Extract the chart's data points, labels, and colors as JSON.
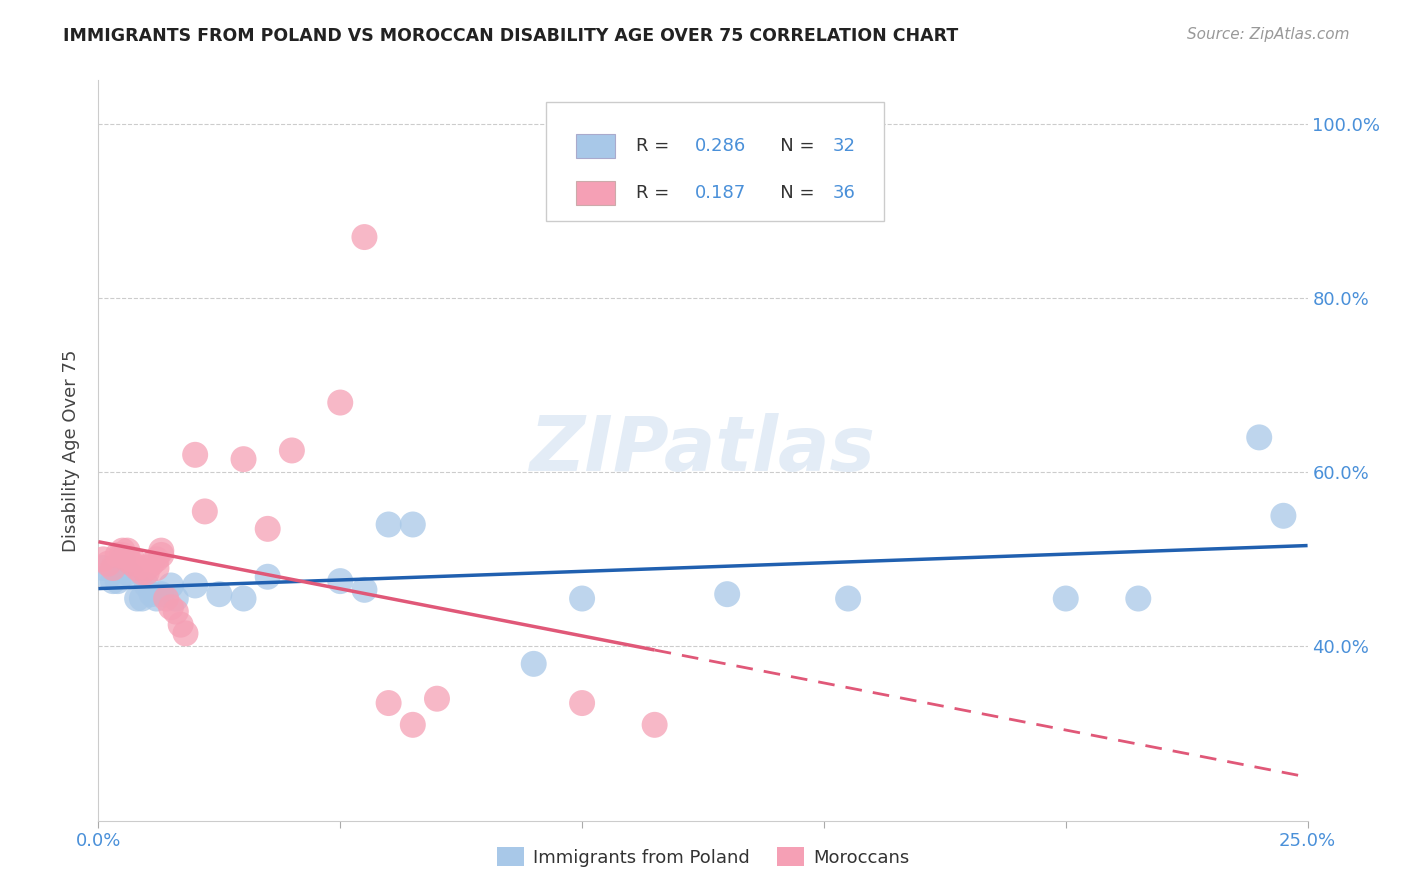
{
  "title": "IMMIGRANTS FROM POLAND VS MOROCCAN DISABILITY AGE OVER 75 CORRELATION CHART",
  "source": "Source: ZipAtlas.com",
  "ylabel": "Disability Age Over 75",
  "xlim": [
    0.0,
    0.25
  ],
  "ylim": [
    0.2,
    1.05
  ],
  "xticks": [
    0.0,
    0.05,
    0.1,
    0.15,
    0.2,
    0.25
  ],
  "xticklabels": [
    "0.0%",
    "",
    "",
    "",
    "",
    "25.0%"
  ],
  "yticks": [
    0.4,
    0.6,
    0.8,
    1.0
  ],
  "yticklabels": [
    "40.0%",
    "60.0%",
    "80.0%",
    "100.0%"
  ],
  "poland_color": "#a8c8e8",
  "moroccan_color": "#f5a0b5",
  "poland_line_color": "#2060b0",
  "moroccan_line_color": "#e05878",
  "grid_color": "#cccccc",
  "axis_color": "#4a90d9",
  "poland_x": [
    0.001,
    0.002,
    0.003,
    0.004,
    0.005,
    0.005,
    0.006,
    0.007,
    0.008,
    0.009,
    0.01,
    0.011,
    0.012,
    0.013,
    0.015,
    0.016,
    0.02,
    0.025,
    0.03,
    0.035,
    0.05,
    0.055,
    0.06,
    0.065,
    0.09,
    0.1,
    0.13,
    0.155,
    0.2,
    0.215,
    0.24,
    0.245
  ],
  "poland_y": [
    0.49,
    0.48,
    0.475,
    0.475,
    0.5,
    0.49,
    0.485,
    0.48,
    0.455,
    0.455,
    0.47,
    0.46,
    0.455,
    0.46,
    0.47,
    0.455,
    0.47,
    0.46,
    0.455,
    0.48,
    0.475,
    0.465,
    0.54,
    0.54,
    0.38,
    0.455,
    0.46,
    0.455,
    0.455,
    0.455,
    0.64,
    0.55
  ],
  "moroccan_x": [
    0.001,
    0.002,
    0.003,
    0.004,
    0.005,
    0.005,
    0.006,
    0.006,
    0.007,
    0.007,
    0.008,
    0.009,
    0.01,
    0.01,
    0.011,
    0.012,
    0.012,
    0.013,
    0.013,
    0.014,
    0.015,
    0.016,
    0.017,
    0.018,
    0.02,
    0.022,
    0.03,
    0.035,
    0.04,
    0.05,
    0.055,
    0.06,
    0.065,
    0.07,
    0.1,
    0.115
  ],
  "moroccan_y": [
    0.5,
    0.495,
    0.49,
    0.505,
    0.51,
    0.505,
    0.5,
    0.51,
    0.495,
    0.5,
    0.49,
    0.485,
    0.485,
    0.49,
    0.495,
    0.49,
    0.5,
    0.51,
    0.505,
    0.455,
    0.445,
    0.44,
    0.425,
    0.415,
    0.62,
    0.555,
    0.615,
    0.535,
    0.625,
    0.68,
    0.87,
    0.335,
    0.31,
    0.34,
    0.335,
    0.31
  ]
}
